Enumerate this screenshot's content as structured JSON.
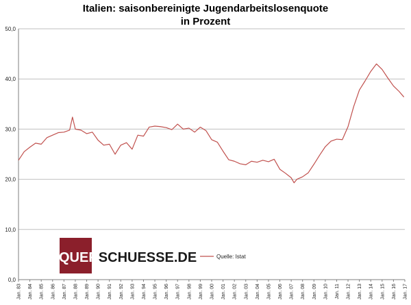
{
  "chart_data": {
    "type": "line",
    "title": "Italien: saisonbereinigte  Jugendarbeitslosenquote",
    "subtitle": "in Prozent",
    "xlabel": "",
    "ylabel": "",
    "ylim": [
      0,
      50
    ],
    "yticks": [
      "0,0",
      "10,0",
      "20,0",
      "30,0",
      "40,0",
      "50,0"
    ],
    "x_start": "1983-01",
    "x_end": "2017-01",
    "xticks": [
      "Jan. 83",
      "Jan. 84",
      "Jan. 85",
      "Jan. 86",
      "Jan. 87",
      "Jan. 88",
      "Jan. 89",
      "Jan. 90",
      "Jan. 91",
      "Jan. 92",
      "Jan. 93",
      "Jan. 94",
      "Jan. 95",
      "Jan. 96",
      "Jan. 97",
      "Jan. 98",
      "Jan. 99",
      "Jan. 00",
      "Jan. 01",
      "Jan. 02",
      "Jan. 03",
      "Jan. 04",
      "Jan. 05",
      "Jan. 06",
      "Jan. 07",
      "Jan. 08",
      "Jan. 09",
      "Jan. 10",
      "Jan. 11",
      "Jan. 12",
      "Jan. 13",
      "Jan. 14",
      "Jan. 15",
      "Jan. 16",
      "Jan. 17"
    ],
    "grid": "horizontal",
    "legend_position": "bottom-center",
    "series": [
      {
        "name": "Quelle: Istat",
        "color": "#c0504d",
        "points": [
          [
            "1983-01",
            23.8
          ],
          [
            "1983-07",
            25.5
          ],
          [
            "1984-01",
            26.4
          ],
          [
            "1984-07",
            27.2
          ],
          [
            "1985-01",
            27.0
          ],
          [
            "1985-07",
            28.3
          ],
          [
            "1986-01",
            28.8
          ],
          [
            "1986-07",
            29.3
          ],
          [
            "1987-01",
            29.4
          ],
          [
            "1987-07",
            29.8
          ],
          [
            "1987-10",
            32.4
          ],
          [
            "1988-01",
            30.0
          ],
          [
            "1988-07",
            29.8
          ],
          [
            "1989-01",
            29.1
          ],
          [
            "1989-07",
            29.4
          ],
          [
            "1990-01",
            27.8
          ],
          [
            "1990-07",
            26.8
          ],
          [
            "1991-01",
            27.0
          ],
          [
            "1991-07",
            25.0
          ],
          [
            "1992-01",
            26.8
          ],
          [
            "1992-07",
            27.3
          ],
          [
            "1993-01",
            26.0
          ],
          [
            "1993-07",
            28.8
          ],
          [
            "1994-01",
            28.6
          ],
          [
            "1994-07",
            30.4
          ],
          [
            "1995-01",
            30.6
          ],
          [
            "1995-07",
            30.5
          ],
          [
            "1996-01",
            30.3
          ],
          [
            "1996-07",
            29.9
          ],
          [
            "1997-01",
            31.0
          ],
          [
            "1997-07",
            30.0
          ],
          [
            "1998-01",
            30.2
          ],
          [
            "1998-07",
            29.4
          ],
          [
            "1999-01",
            30.4
          ],
          [
            "1999-07",
            29.7
          ],
          [
            "2000-01",
            27.9
          ],
          [
            "2000-07",
            27.4
          ],
          [
            "2001-01",
            25.6
          ],
          [
            "2001-07",
            23.9
          ],
          [
            "2002-01",
            23.6
          ],
          [
            "2002-07",
            23.1
          ],
          [
            "2003-01",
            22.9
          ],
          [
            "2003-07",
            23.6
          ],
          [
            "2004-01",
            23.4
          ],
          [
            "2004-07",
            23.8
          ],
          [
            "2005-01",
            23.5
          ],
          [
            "2005-07",
            24.0
          ],
          [
            "2006-01",
            22.0
          ],
          [
            "2006-07",
            21.2
          ],
          [
            "2007-01",
            20.3
          ],
          [
            "2007-04",
            19.3
          ],
          [
            "2007-07",
            20.0
          ],
          [
            "2008-01",
            20.5
          ],
          [
            "2008-07",
            21.3
          ],
          [
            "2009-01",
            23.0
          ],
          [
            "2009-07",
            24.8
          ],
          [
            "2010-01",
            26.5
          ],
          [
            "2010-07",
            27.6
          ],
          [
            "2011-01",
            28.0
          ],
          [
            "2011-07",
            27.9
          ],
          [
            "2012-01",
            30.5
          ],
          [
            "2012-07",
            34.5
          ],
          [
            "2013-01",
            37.8
          ],
          [
            "2013-07",
            39.6
          ],
          [
            "2014-01",
            41.5
          ],
          [
            "2014-07",
            43.0
          ],
          [
            "2015-01",
            41.9
          ],
          [
            "2015-07",
            40.2
          ],
          [
            "2016-01",
            38.6
          ],
          [
            "2016-07",
            37.5
          ],
          [
            "2016-12",
            36.4
          ]
        ]
      }
    ]
  },
  "logo": {
    "text": "QUERSCHUESSE.DE"
  }
}
